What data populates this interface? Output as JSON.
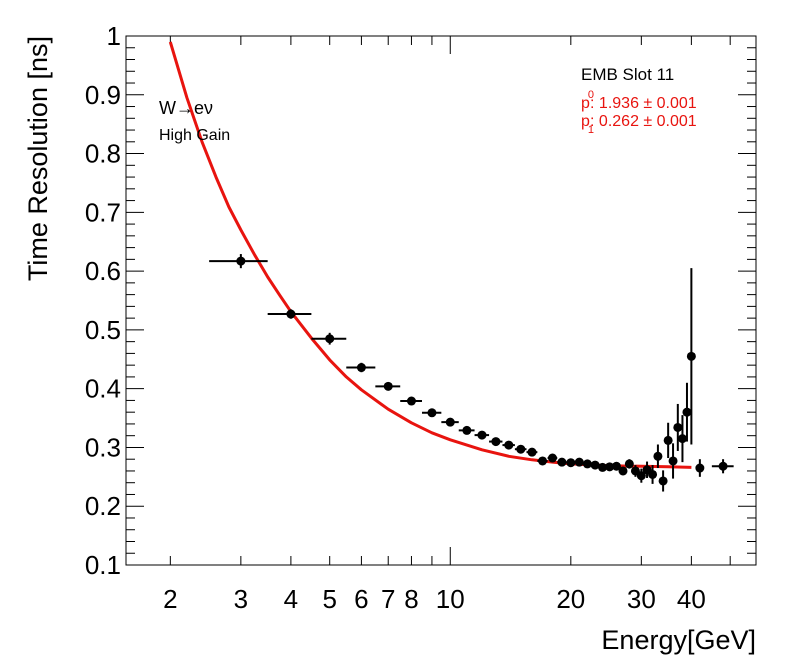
{
  "chart_data": {
    "type": "scatter",
    "xlabel": "Energy[GeV]",
    "ylabel": "Time Resolution [ns]",
    "xscale": "log",
    "xlim": [
      1.55,
      58
    ],
    "ylim": [
      0.1,
      1.0
    ],
    "xticks": [
      2,
      3,
      4,
      5,
      6,
      7,
      8,
      10,
      20,
      30,
      40
    ],
    "xtick_labels": [
      "2",
      "3",
      "4",
      "5",
      "6",
      "7",
      "8",
      "10",
      "20",
      "30",
      "40"
    ],
    "yticks": [
      0.1,
      0.2,
      0.3,
      0.4,
      0.5,
      0.6,
      0.7,
      0.8,
      0.9,
      1.0
    ],
    "ytick_labels": [
      "0.1",
      "0.2",
      "0.3",
      "0.4",
      "0.5",
      "0.6",
      "0.7",
      "0.8",
      "0.9",
      "1"
    ],
    "annotations": {
      "process_pre": "W",
      "arrow": "→",
      "process_post": "eν",
      "gain": "High Gain",
      "slot": "EMB Slot 11",
      "p0_label": "p",
      "p0_sub": "0",
      "p0_value": ": 1.936 ± 0.001",
      "p1_label": "p",
      "p1_sub": "1",
      "p1_value": ": 0.262 ± 0.001"
    },
    "colors": {
      "points": "#000000",
      "fit": "#e8140f",
      "params": "#e8140f"
    },
    "points": [
      {
        "x": 3.0,
        "y": 0.617,
        "xlo": 2.5,
        "xhi": 3.5,
        "err": 0.012
      },
      {
        "x": 4.0,
        "y": 0.527,
        "xlo": 3.5,
        "xhi": 4.5,
        "err": 0.008
      },
      {
        "x": 5.0,
        "y": 0.485,
        "xlo": 4.5,
        "xhi": 5.5,
        "err": 0.01
      },
      {
        "x": 6.0,
        "y": 0.436,
        "xlo": 5.5,
        "xhi": 6.5,
        "err": 0.008
      },
      {
        "x": 7.0,
        "y": 0.404,
        "xlo": 6.5,
        "xhi": 7.5,
        "err": 0.007
      },
      {
        "x": 8.0,
        "y": 0.379,
        "xlo": 7.5,
        "xhi": 8.5,
        "err": 0.006
      },
      {
        "x": 9.0,
        "y": 0.359,
        "xlo": 8.5,
        "xhi": 9.5,
        "err": 0.005
      },
      {
        "x": 10.0,
        "y": 0.343,
        "xlo": 9.5,
        "xhi": 10.5,
        "err": 0.005
      },
      {
        "x": 11.0,
        "y": 0.329,
        "xlo": 10.5,
        "xhi": 11.5,
        "err": 0.004
      },
      {
        "x": 12.0,
        "y": 0.321,
        "xlo": 11.5,
        "xhi": 12.5,
        "err": 0.004
      },
      {
        "x": 13.0,
        "y": 0.31,
        "xlo": 12.5,
        "xhi": 13.5,
        "err": 0.004
      },
      {
        "x": 14.0,
        "y": 0.304,
        "xlo": 13.5,
        "xhi": 14.5,
        "err": 0.004
      },
      {
        "x": 15.0,
        "y": 0.297,
        "xlo": 14.5,
        "xhi": 15.5,
        "err": 0.004
      },
      {
        "x": 16.0,
        "y": 0.292,
        "xlo": 15.5,
        "xhi": 16.5,
        "err": 0.004
      },
      {
        "x": 17.0,
        "y": 0.277,
        "xlo": 16.5,
        "xhi": 17.5,
        "err": 0.004
      },
      {
        "x": 18.0,
        "y": 0.282,
        "xlo": 17.5,
        "xhi": 18.5,
        "err": 0.004
      },
      {
        "x": 19.0,
        "y": 0.275,
        "xlo": 18.5,
        "xhi": 19.5,
        "err": 0.004
      },
      {
        "x": 20.0,
        "y": 0.274,
        "xlo": 19.5,
        "xhi": 20.5,
        "err": 0.004
      },
      {
        "x": 21.0,
        "y": 0.275,
        "xlo": 20.5,
        "xhi": 21.5,
        "err": 0.004
      },
      {
        "x": 22.0,
        "y": 0.272,
        "xlo": 21.5,
        "xhi": 22.5,
        "err": 0.004
      },
      {
        "x": 23.0,
        "y": 0.27,
        "xlo": 22.5,
        "xhi": 23.5,
        "err": 0.004
      },
      {
        "x": 24.0,
        "y": 0.266,
        "xlo": 23.5,
        "xhi": 24.5,
        "err": 0.005
      },
      {
        "x": 25.0,
        "y": 0.267,
        "xlo": 24.5,
        "xhi": 25.5,
        "err": 0.005
      },
      {
        "x": 26.0,
        "y": 0.268,
        "xlo": 25.5,
        "xhi": 26.5,
        "err": 0.006
      },
      {
        "x": 27.0,
        "y": 0.26,
        "xlo": 26.5,
        "xhi": 27.5,
        "err": 0.007
      },
      {
        "x": 28.0,
        "y": 0.272,
        "xlo": 27.5,
        "xhi": 28.5,
        "err": 0.008
      },
      {
        "x": 29.0,
        "y": 0.26,
        "xlo": 28.5,
        "xhi": 29.5,
        "err": 0.01
      },
      {
        "x": 30.0,
        "y": 0.252,
        "xlo": 29.5,
        "xhi": 30.5,
        "err": 0.012
      },
      {
        "x": 31.0,
        "y": 0.262,
        "xlo": 30.5,
        "xhi": 31.5,
        "err": 0.014
      },
      {
        "x": 32.0,
        "y": 0.254,
        "xlo": 31.5,
        "xhi": 32.5,
        "err": 0.016
      },
      {
        "x": 33.0,
        "y": 0.285,
        "xlo": 32.5,
        "xhi": 33.5,
        "err": 0.02
      },
      {
        "x": 34.0,
        "y": 0.243,
        "xlo": 33.5,
        "xhi": 34.5,
        "err": 0.018
      },
      {
        "x": 35.0,
        "y": 0.312,
        "xlo": 34.5,
        "xhi": 35.5,
        "err": 0.03
      },
      {
        "x": 36.0,
        "y": 0.277,
        "xlo": 35.5,
        "xhi": 36.5,
        "err": 0.03
      },
      {
        "x": 37.0,
        "y": 0.334,
        "xlo": 36.5,
        "xhi": 37.5,
        "err": 0.04
      },
      {
        "x": 38.0,
        "y": 0.315,
        "xlo": 37.5,
        "xhi": 38.5,
        "err": 0.04
      },
      {
        "x": 39.0,
        "y": 0.36,
        "xlo": 38.5,
        "xhi": 39.5,
        "err": 0.05
      },
      {
        "x": 40.0,
        "y": 0.455,
        "xlo": 39.5,
        "xhi": 40.5,
        "err": 0.15
      },
      {
        "x": 42.0,
        "y": 0.265,
        "xlo": 41.0,
        "xhi": 43.0,
        "err": 0.015
      },
      {
        "x": 48.0,
        "y": 0.268,
        "xlo": 45.0,
        "xhi": 51.0,
        "err": 0.012
      }
    ],
    "fit_curve": {
      "x": [
        2.0,
        2.2,
        2.4,
        2.6,
        2.8,
        3.0,
        3.25,
        3.5,
        3.75,
        4.0,
        4.5,
        5.0,
        5.5,
        6.0,
        7.0,
        8.0,
        9.0,
        10.0,
        12.0,
        14.0,
        16.0,
        18.0,
        20.0,
        25.0,
        30.0,
        35.0,
        40.0
      ],
      "y": [
        0.99,
        0.895,
        0.82,
        0.76,
        0.709,
        0.67,
        0.627,
        0.59,
        0.559,
        0.531,
        0.486,
        0.449,
        0.42,
        0.398,
        0.365,
        0.342,
        0.325,
        0.313,
        0.296,
        0.285,
        0.279,
        0.275,
        0.272,
        0.269,
        0.268,
        0.267,
        0.266
      ]
    }
  }
}
